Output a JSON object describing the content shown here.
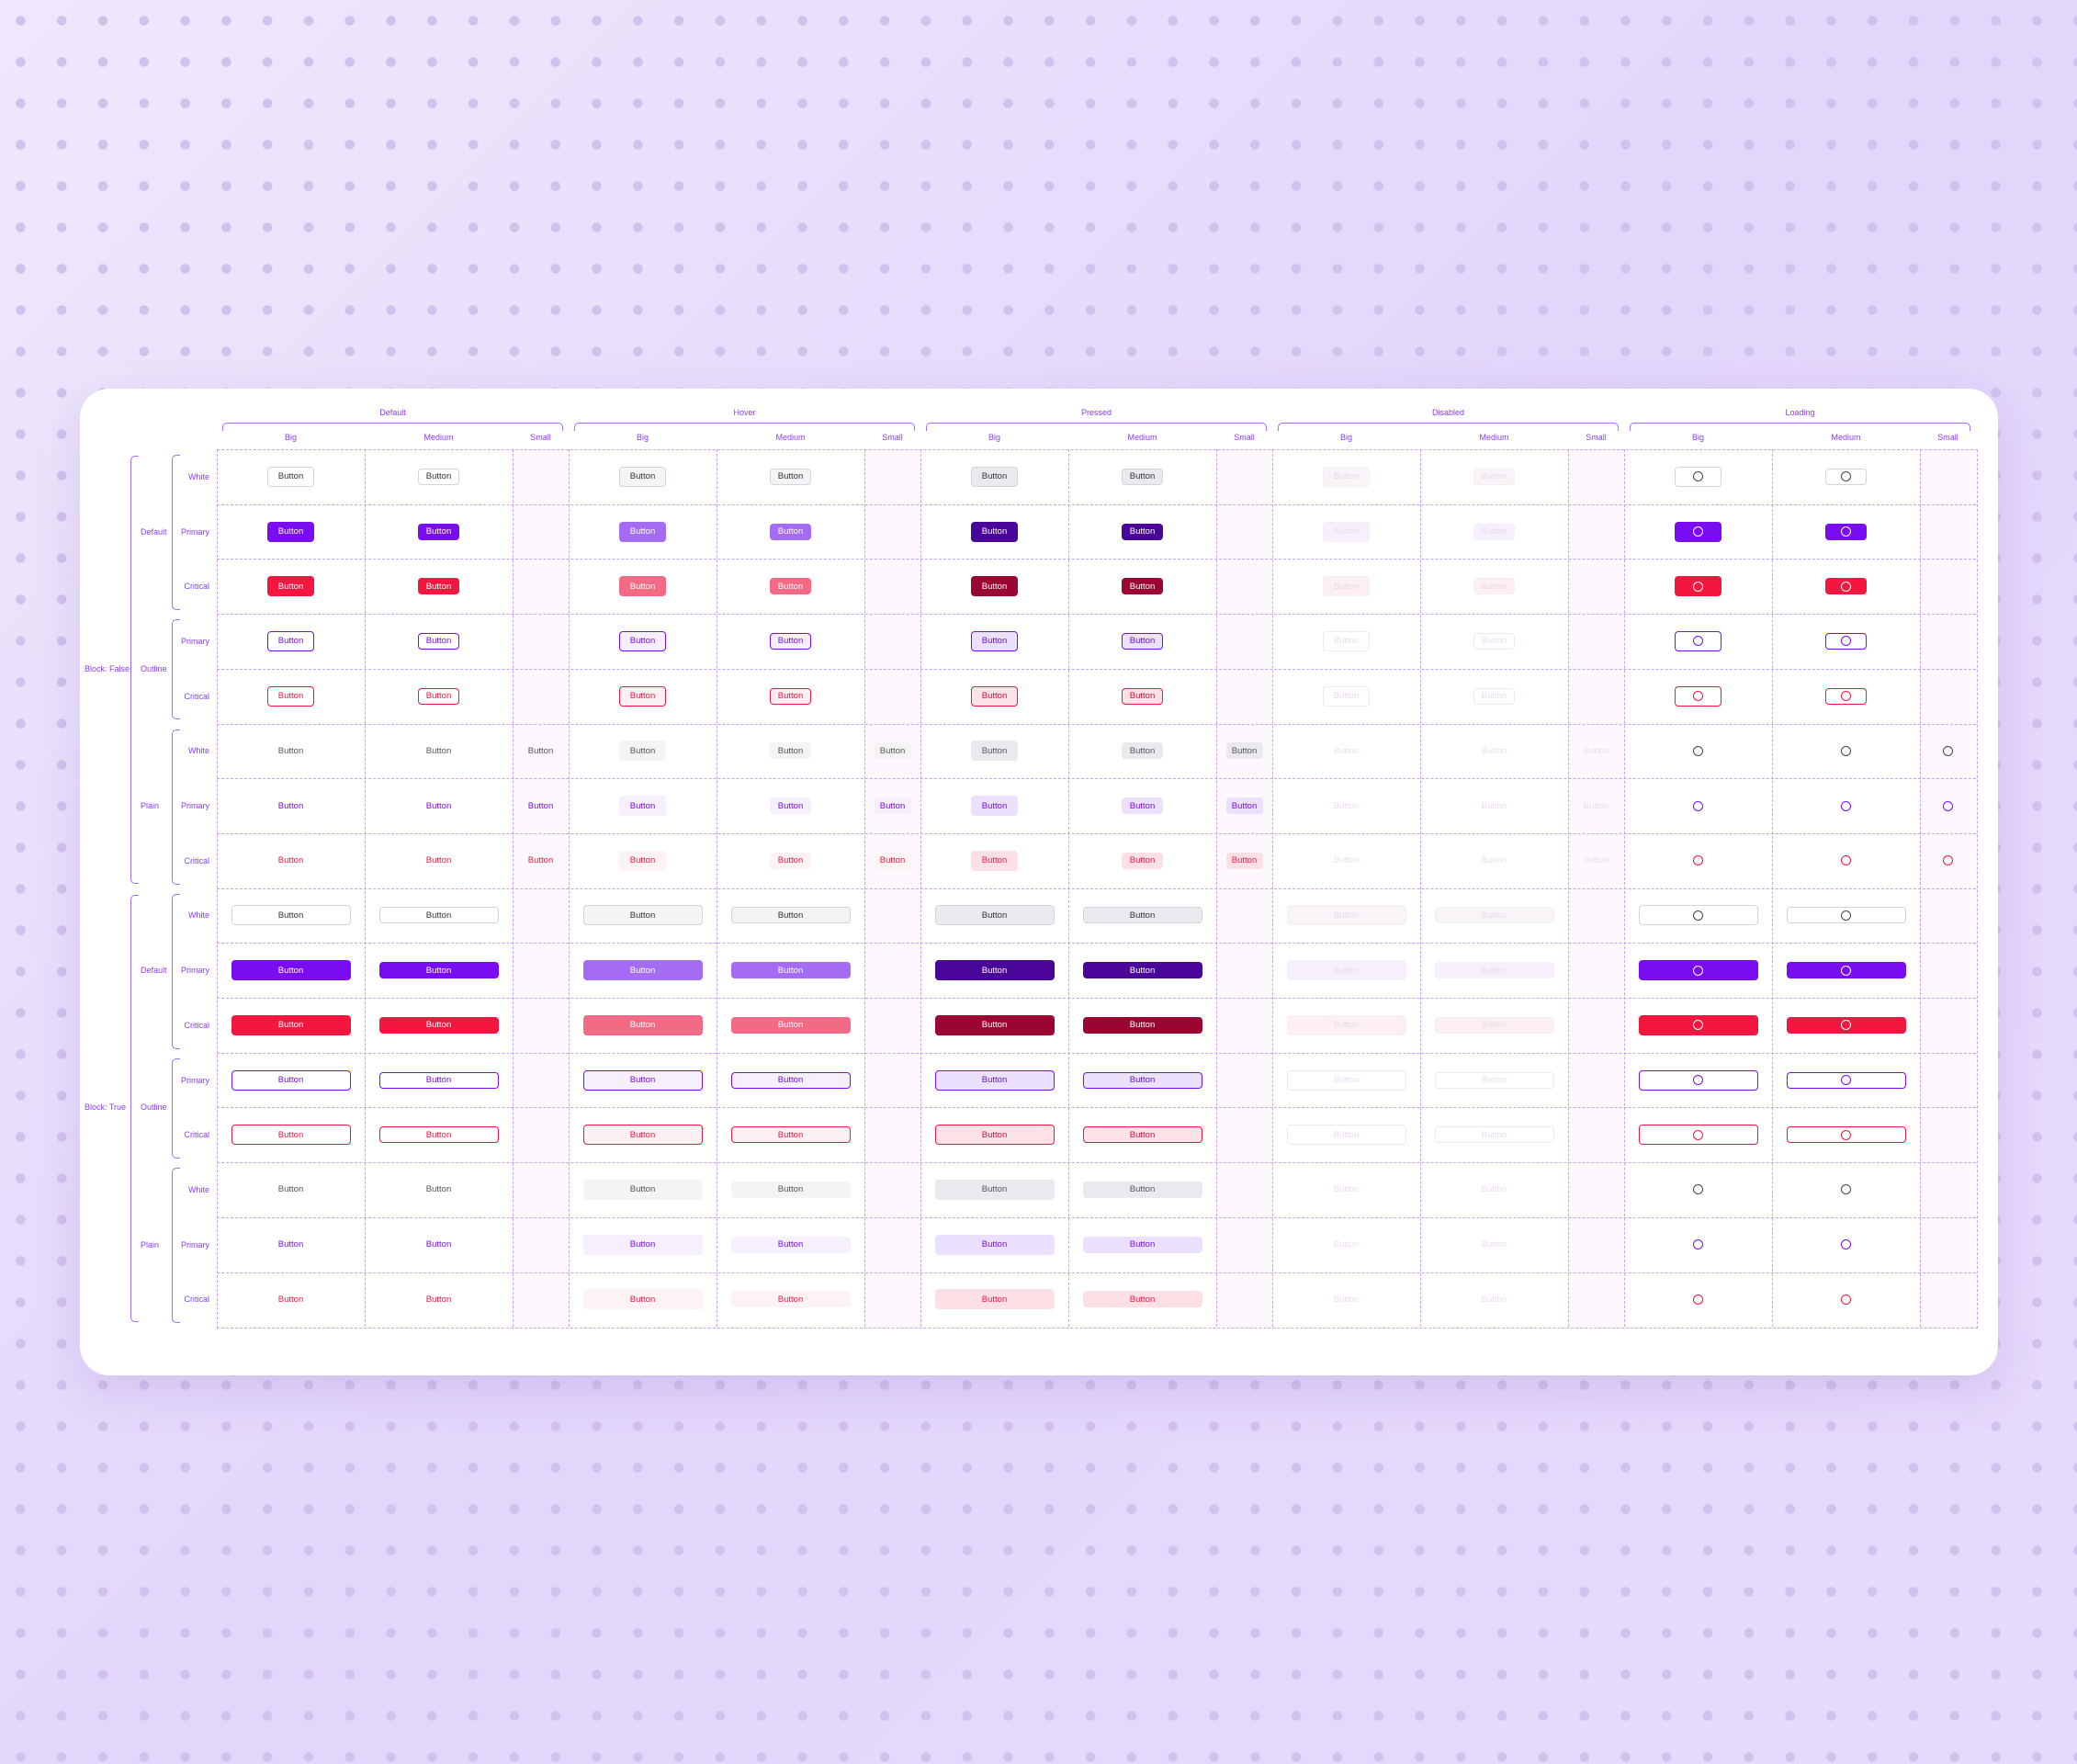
{
  "states": [
    "Default",
    "Hover",
    "Pressed",
    "Disabled",
    "Loading"
  ],
  "sizes": [
    "Big",
    "Medium",
    "Small"
  ],
  "block_groups": [
    "Block: False",
    "Block: True"
  ],
  "variants": [
    "Default",
    "Outline",
    "Plain"
  ],
  "rows": [
    {
      "label": "White",
      "variant": "Default"
    },
    {
      "label": "Primary",
      "variant": "Default"
    },
    {
      "label": "Critical",
      "variant": "Default"
    },
    {
      "label": "Primary",
      "variant": "Outline"
    },
    {
      "label": "Critical",
      "variant": "Outline"
    },
    {
      "label": "White",
      "variant": "Plain"
    },
    {
      "label": "Primary",
      "variant": "Plain"
    },
    {
      "label": "Critical",
      "variant": "Plain"
    }
  ],
  "button_label": "Button",
  "colors": {
    "accent": "#8a3cf0",
    "primary": "#7a0cf2",
    "primary_hover": "#a36cf3",
    "primary_pressed": "#4a0599",
    "critical": "#f3163f",
    "critical_hover": "#f36a85",
    "critical_pressed": "#9a0531"
  }
}
